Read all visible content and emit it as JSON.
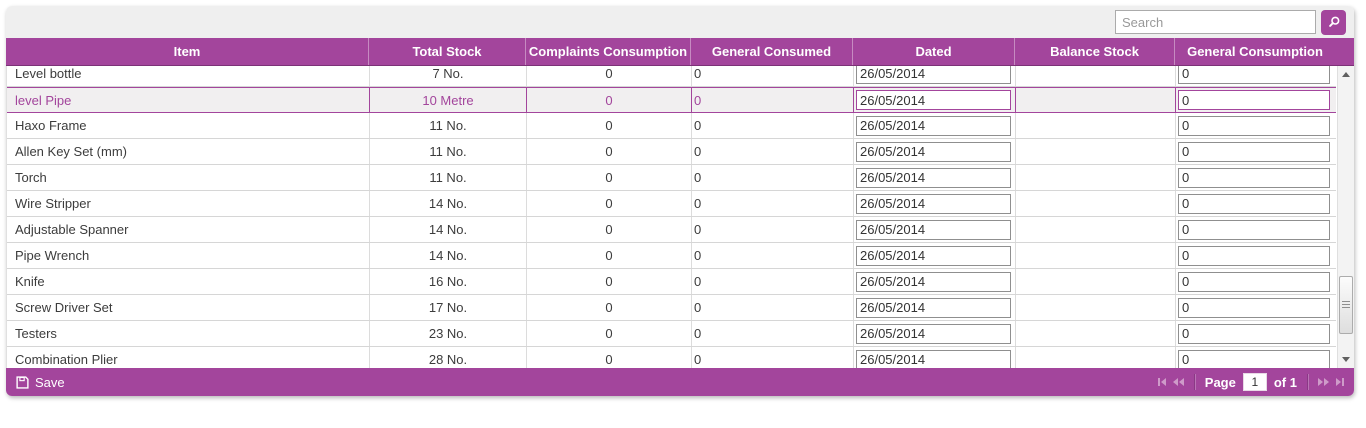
{
  "colors": {
    "accent": "#A3459C",
    "toolbar_bg": "#EFEFEF",
    "selected_row_text": "#A3459C"
  },
  "toolbar": {
    "search_placeholder": "Search",
    "search_value": "",
    "search_icon": "magnifier-icon"
  },
  "table": {
    "columns": [
      {
        "key": "item",
        "label": "Item"
      },
      {
        "key": "total_stock",
        "label": "Total Stock"
      },
      {
        "key": "complaints_consumption",
        "label": "Complaints Consumption"
      },
      {
        "key": "general_consumed",
        "label": "General Consumed"
      },
      {
        "key": "dated",
        "label": "Dated"
      },
      {
        "key": "balance_stock",
        "label": "Balance Stock"
      },
      {
        "key": "general_consumption",
        "label": "General Consumption"
      }
    ],
    "rows": [
      {
        "item": "Level bottle",
        "total_stock": "7 No.",
        "complaints_consumption": "0",
        "general_consumed": "0",
        "dated": "26/05/2014",
        "balance_stock": "",
        "general_consumption": "0",
        "selected": false
      },
      {
        "item": "level Pipe",
        "total_stock": "10 Metre",
        "complaints_consumption": "0",
        "general_consumed": "0",
        "dated": "26/05/2014",
        "balance_stock": "",
        "general_consumption": "0",
        "selected": true
      },
      {
        "item": "Haxo Frame",
        "total_stock": "11 No.",
        "complaints_consumption": "0",
        "general_consumed": "0",
        "dated": "26/05/2014",
        "balance_stock": "",
        "general_consumption": "0",
        "selected": false
      },
      {
        "item": "Allen Key Set (mm)",
        "total_stock": "11 No.",
        "complaints_consumption": "0",
        "general_consumed": "0",
        "dated": "26/05/2014",
        "balance_stock": "",
        "general_consumption": "0",
        "selected": false
      },
      {
        "item": "Torch",
        "total_stock": "11 No.",
        "complaints_consumption": "0",
        "general_consumed": "0",
        "dated": "26/05/2014",
        "balance_stock": "",
        "general_consumption": "0",
        "selected": false
      },
      {
        "item": "Wire Stripper",
        "total_stock": "14 No.",
        "complaints_consumption": "0",
        "general_consumed": "0",
        "dated": "26/05/2014",
        "balance_stock": "",
        "general_consumption": "0",
        "selected": false
      },
      {
        "item": "Adjustable Spanner",
        "total_stock": "14 No.",
        "complaints_consumption": "0",
        "general_consumed": "0",
        "dated": "26/05/2014",
        "balance_stock": "",
        "general_consumption": "0",
        "selected": false
      },
      {
        "item": "Pipe Wrench",
        "total_stock": "14 No.",
        "complaints_consumption": "0",
        "general_consumed": "0",
        "dated": "26/05/2014",
        "balance_stock": "",
        "general_consumption": "0",
        "selected": false
      },
      {
        "item": "Knife",
        "total_stock": "16 No.",
        "complaints_consumption": "0",
        "general_consumed": "0",
        "dated": "26/05/2014",
        "balance_stock": "",
        "general_consumption": "0",
        "selected": false
      },
      {
        "item": "Screw Driver Set",
        "total_stock": "17 No.",
        "complaints_consumption": "0",
        "general_consumed": "0",
        "dated": "26/05/2014",
        "balance_stock": "",
        "general_consumption": "0",
        "selected": false
      },
      {
        "item": "Testers",
        "total_stock": "23 No.",
        "complaints_consumption": "0",
        "general_consumed": "0",
        "dated": "26/05/2014",
        "balance_stock": "",
        "general_consumption": "0",
        "selected": false
      },
      {
        "item": "Combination Plier",
        "total_stock": "28 No.",
        "complaints_consumption": "0",
        "general_consumed": "0",
        "dated": "26/05/2014",
        "balance_stock": "",
        "general_consumption": "0",
        "selected": false
      }
    ]
  },
  "footer": {
    "save_label": "Save",
    "save_icon": "floppy-disk-icon",
    "pagination": {
      "page_label": "Page",
      "current_page": "1",
      "of_label": "of",
      "total_pages": "1"
    }
  }
}
